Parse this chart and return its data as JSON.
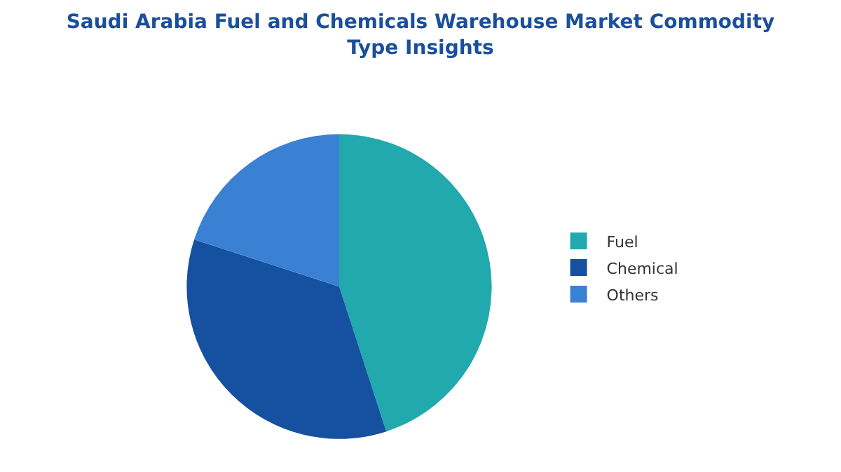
{
  "chart_data": {
    "type": "pie",
    "title": "Saudi Arabia Fuel and Chemicals Warehouse Market Commodity Type Insights",
    "categories": [
      "Fuel",
      "Chemical",
      "Others"
    ],
    "values": [
      45,
      35,
      20
    ],
    "colors": [
      "#21a9ad",
      "#1650a0",
      "#3a80d3"
    ],
    "legend": "right"
  }
}
